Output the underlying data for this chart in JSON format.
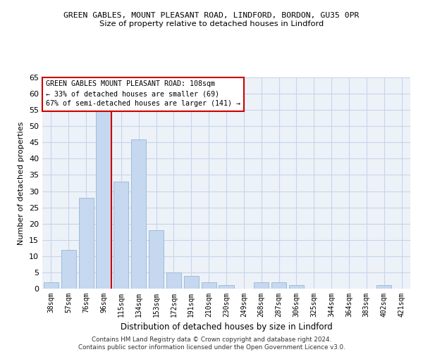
{
  "title1": "GREEN GABLES, MOUNT PLEASANT ROAD, LINDFORD, BORDON, GU35 0PR",
  "title2": "Size of property relative to detached houses in Lindford",
  "xlabel": "Distribution of detached houses by size in Lindford",
  "ylabel": "Number of detached properties",
  "categories": [
    "38sqm",
    "57sqm",
    "76sqm",
    "96sqm",
    "115sqm",
    "134sqm",
    "153sqm",
    "172sqm",
    "191sqm",
    "210sqm",
    "230sqm",
    "249sqm",
    "268sqm",
    "287sqm",
    "306sqm",
    "325sqm",
    "344sqm",
    "364sqm",
    "383sqm",
    "402sqm",
    "421sqm"
  ],
  "values": [
    2,
    12,
    28,
    55,
    33,
    46,
    18,
    5,
    4,
    2,
    1,
    0,
    2,
    2,
    1,
    0,
    0,
    0,
    0,
    1,
    0
  ],
  "bar_color": "#c5d8f0",
  "bar_edge_color": "#a0bcd8",
  "ylim": [
    0,
    65
  ],
  "yticks": [
    0,
    5,
    10,
    15,
    20,
    25,
    30,
    35,
    40,
    45,
    50,
    55,
    60,
    65
  ],
  "vline_color": "#cc0000",
  "annotation_text": "GREEN GABLES MOUNT PLEASANT ROAD: 108sqm\n← 33% of detached houses are smaller (69)\n67% of semi-detached houses are larger (141) →",
  "annotation_box_color": "white",
  "annotation_box_edge": "#cc0000",
  "footer1": "Contains HM Land Registry data © Crown copyright and database right 2024.",
  "footer2": "Contains public sector information licensed under the Open Government Licence v3.0.",
  "bg_color": "#edf2f9",
  "grid_color": "#c8d4e8"
}
